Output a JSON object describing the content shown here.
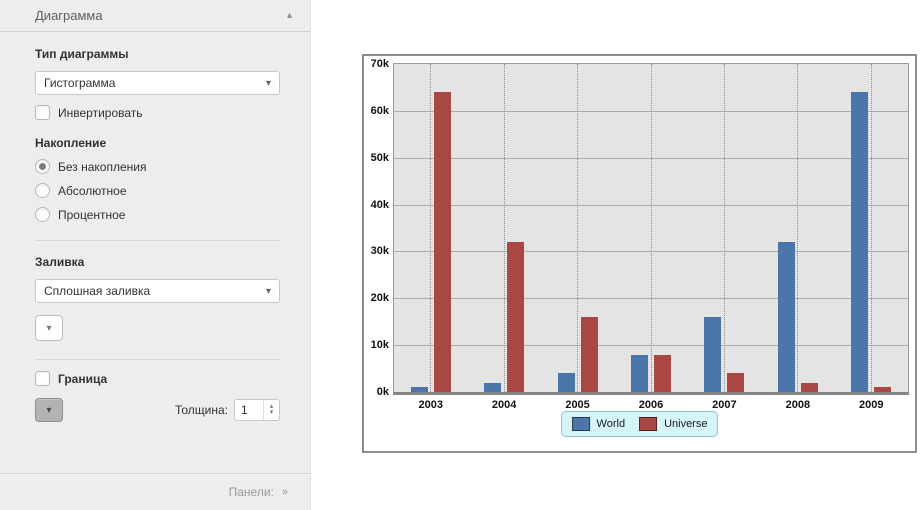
{
  "icons": {
    "collapse": "▴",
    "dropdown": "▾",
    "spinner_up": "▴",
    "spinner_down": "▾",
    "panels_chevrons": "»"
  },
  "panel": {
    "header": {
      "title": "Диаграмма"
    },
    "chart_type": {
      "label": "Тип диаграммы",
      "value": "Гистограмма"
    },
    "invert": {
      "label": "Инвертировать",
      "checked": false
    },
    "stacking": {
      "label": "Накопление",
      "options": [
        {
          "label": "Без накопления",
          "selected": true
        },
        {
          "label": "Абсолютное",
          "selected": false
        },
        {
          "label": "Процентное",
          "selected": false
        }
      ]
    },
    "fill": {
      "label": "Заливка",
      "value": "Сплошная заливка"
    },
    "border": {
      "label": "Граница",
      "checked": false,
      "thickness_label": "Толщина:",
      "thickness_value": "1"
    },
    "footer": {
      "label": "Панели:"
    }
  },
  "chart_data": {
    "type": "bar",
    "categories": [
      "2003",
      "2004",
      "2005",
      "2006",
      "2007",
      "2008",
      "2009"
    ],
    "series": [
      {
        "name": "World",
        "color": "#4a76ab",
        "values": [
          1000,
          2000,
          4000,
          8000,
          16000,
          32000,
          64000
        ]
      },
      {
        "name": "Universe",
        "color": "#aa4643",
        "values": [
          64000,
          32000,
          16000,
          8000,
          4000,
          2000,
          1000
        ]
      }
    ],
    "title": "",
    "xlabel": "",
    "ylabel": "",
    "ylim": [
      0,
      70000
    ],
    "ytick_step": 10000,
    "ytick_labels": [
      "0k",
      "10k",
      "20k",
      "30k",
      "40k",
      "50k",
      "60k",
      "70k"
    ],
    "grid": true,
    "legend_position": "bottom",
    "plot_background": "#e4e4e4"
  }
}
